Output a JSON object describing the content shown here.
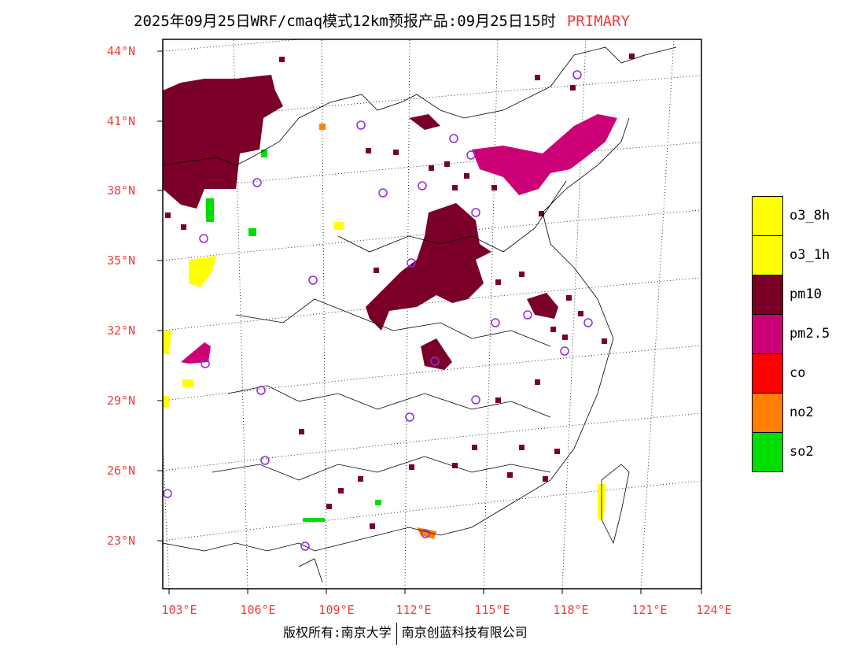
{
  "title": {
    "text": "2025年09月25日WRF/cmaq模式12km预报产品:09月25日15时",
    "tag": "PRIMARY"
  },
  "lat_labels": [
    "44°N",
    "41°N",
    "38°N",
    "35°N",
    "32°N",
    "29°N",
    "26°N",
    "23°N"
  ],
  "lon_labels": [
    "103°E",
    "106°E",
    "109°E",
    "112°E",
    "115°E",
    "118°E",
    "121°E",
    "124°E"
  ],
  "legend": [
    {
      "label": "o3_8h",
      "color": "#ffff00"
    },
    {
      "label": "o3_1h",
      "color": "#ffff00"
    },
    {
      "label": "pm10",
      "color": "#7a0028"
    },
    {
      "label": "pm2.5",
      "color": "#cc0077"
    },
    {
      "label": "co",
      "color": "#ff0000"
    },
    {
      "label": "no2",
      "color": "#ff7f00"
    },
    {
      "label": "so2",
      "color": "#00dd00"
    }
  ],
  "footer": {
    "left": "版权所有:南京大学",
    "right": "南京创蓝科技有限公司"
  }
}
